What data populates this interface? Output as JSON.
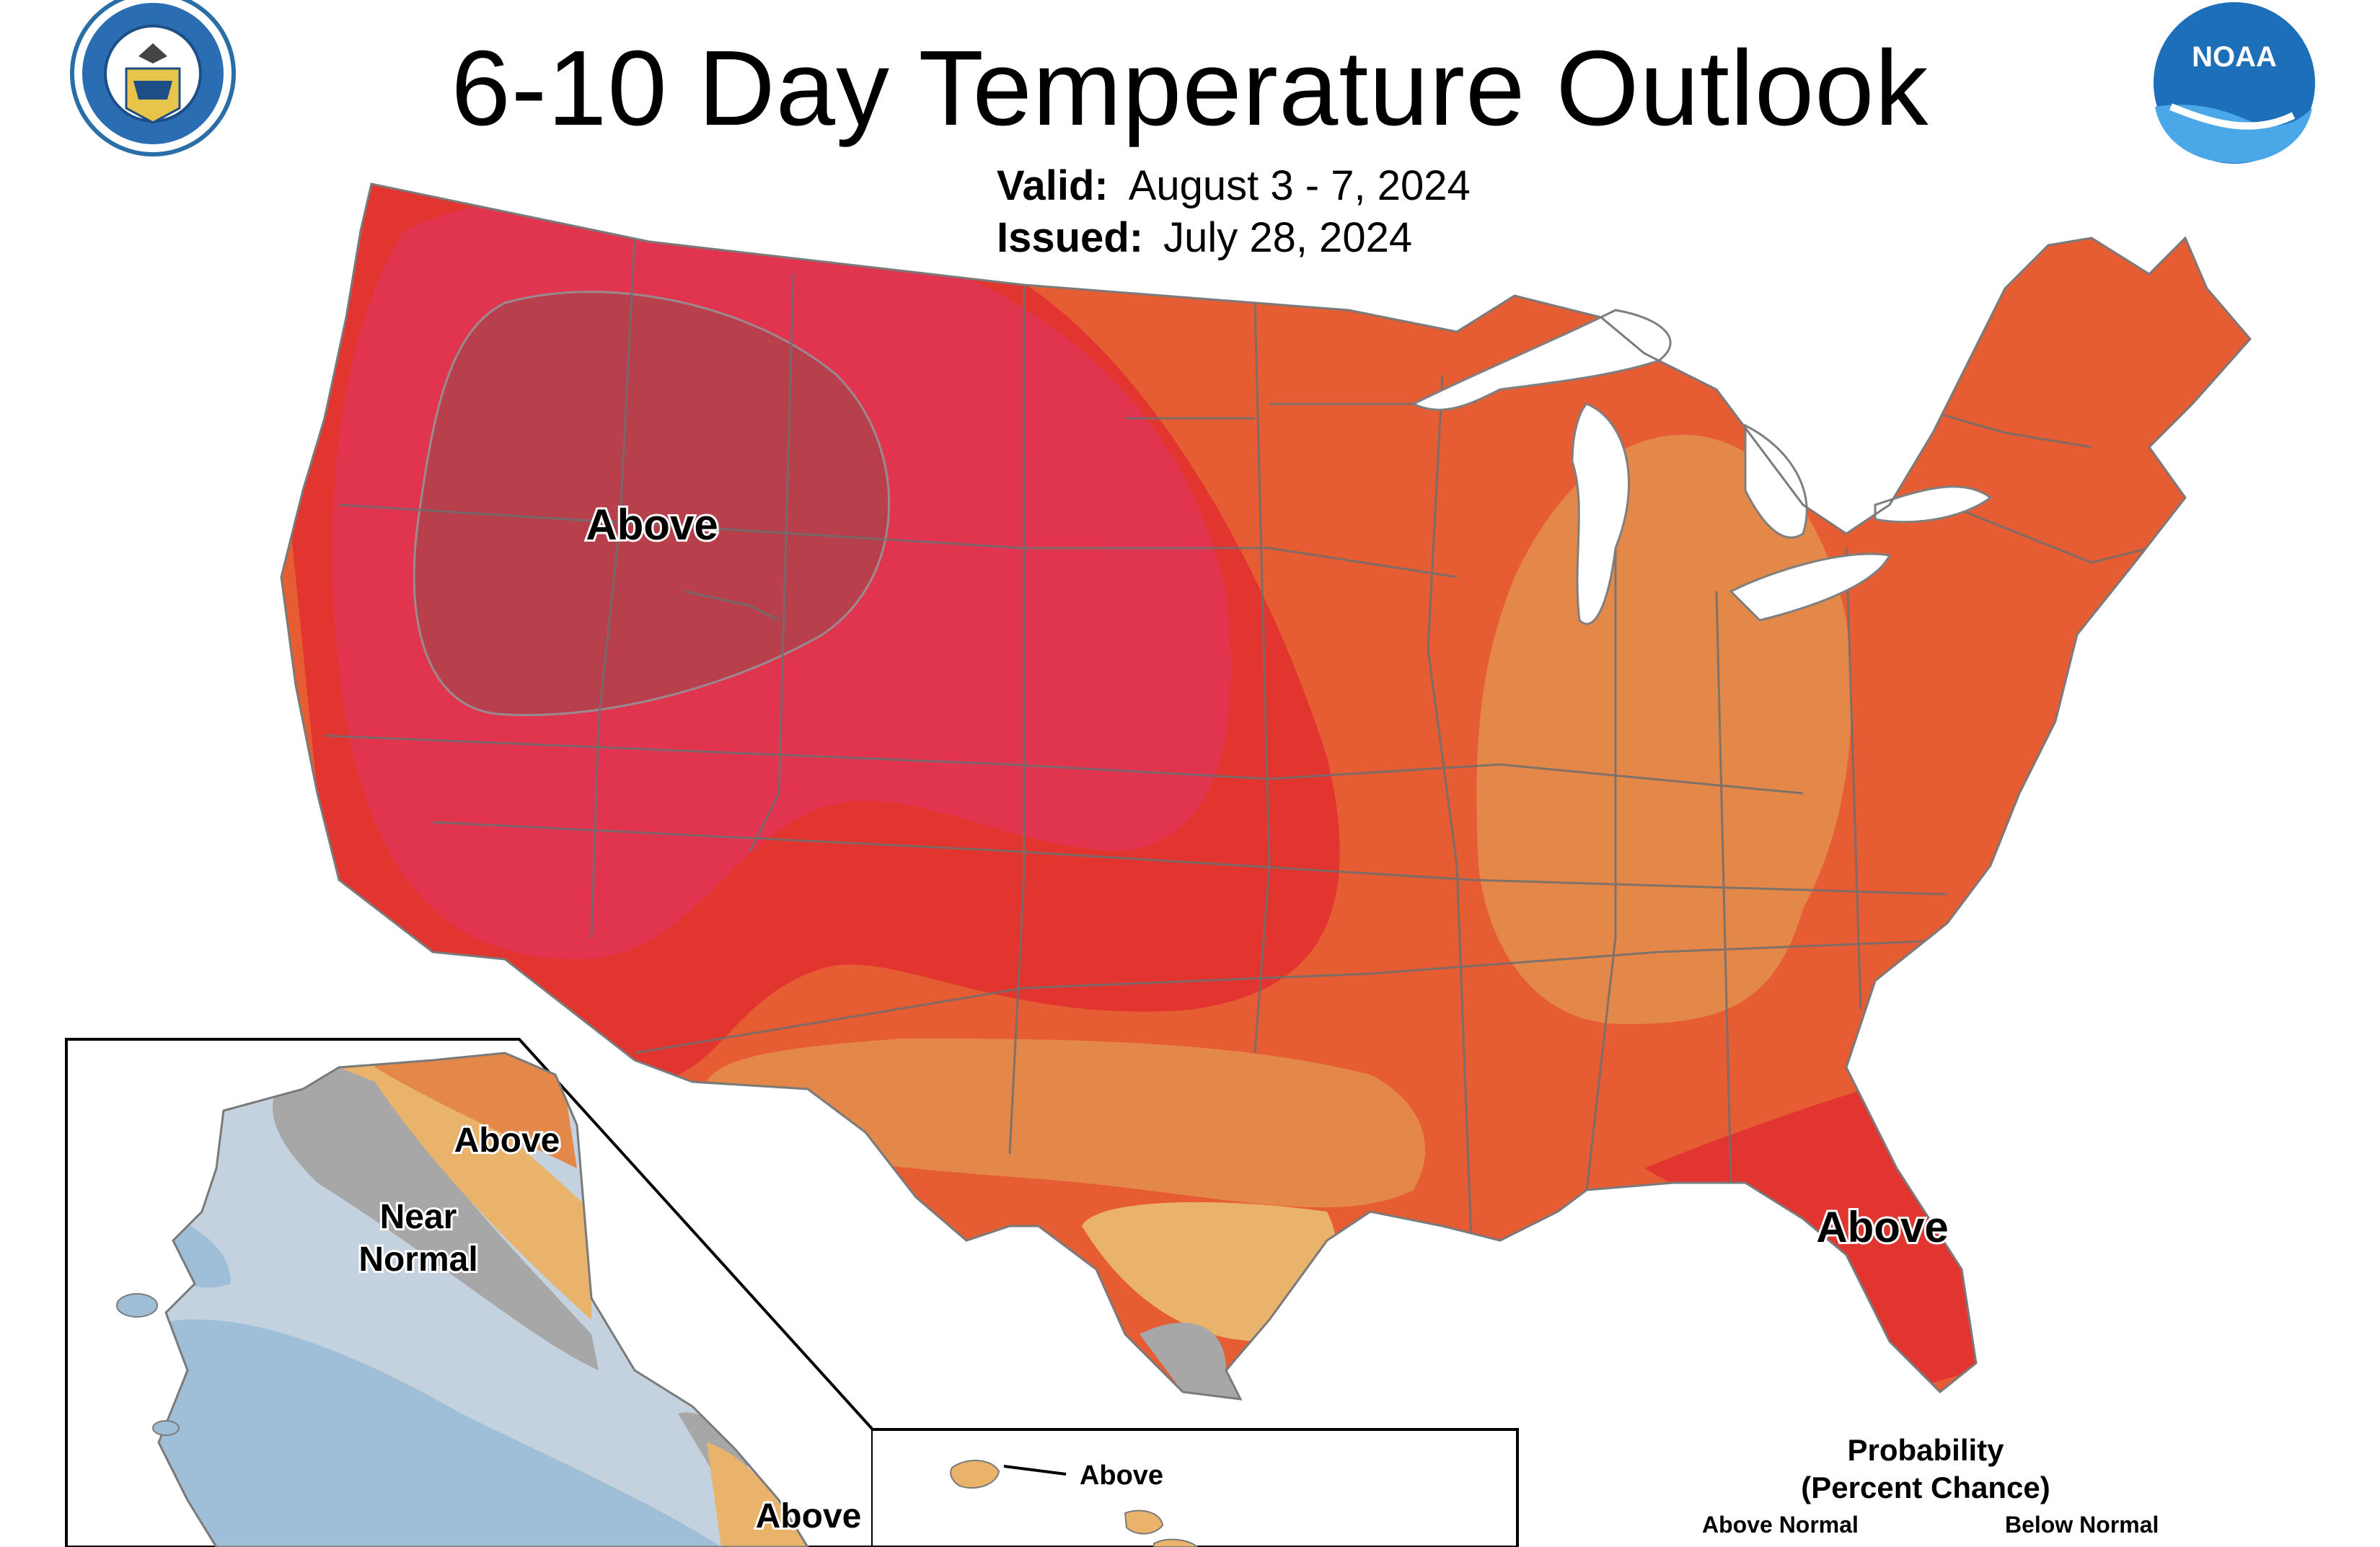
{
  "header": {
    "title": "6-10 Day Temperature Outlook",
    "valid_label": "Valid:",
    "valid_value": "August 3 - 7, 2024",
    "issued_label": "Issued:",
    "issued_value": "July 28, 2024"
  },
  "logos": {
    "commerce_seal": "commerce-seal-icon",
    "noaa": "noaa-logo-icon",
    "noaa_text": "NOAA"
  },
  "map_labels": {
    "west": "Above",
    "florida": "Above",
    "alaska_north": "Above",
    "alaska_near_1": "Near",
    "alaska_near_2": "Normal",
    "alaska_southeast": "Above",
    "hawaii": "Above"
  },
  "legend": {
    "title_1": "Probability",
    "title_2": "(Percent Chance)",
    "above_label": "Above Normal",
    "below_label": "Below Normal"
  },
  "colors": {
    "above_90": "#b7404c",
    "above_70": "#e1344f",
    "above_60": "#e2352f",
    "above_50": "#e65c33",
    "above_40": "#e4884a",
    "above_33": "#e9b36c",
    "near_normal": "#a7a7a7",
    "below_33": "#c4d2e0",
    "below_40": "#9fbfd8",
    "state_lines": "#6f6f6f"
  }
}
